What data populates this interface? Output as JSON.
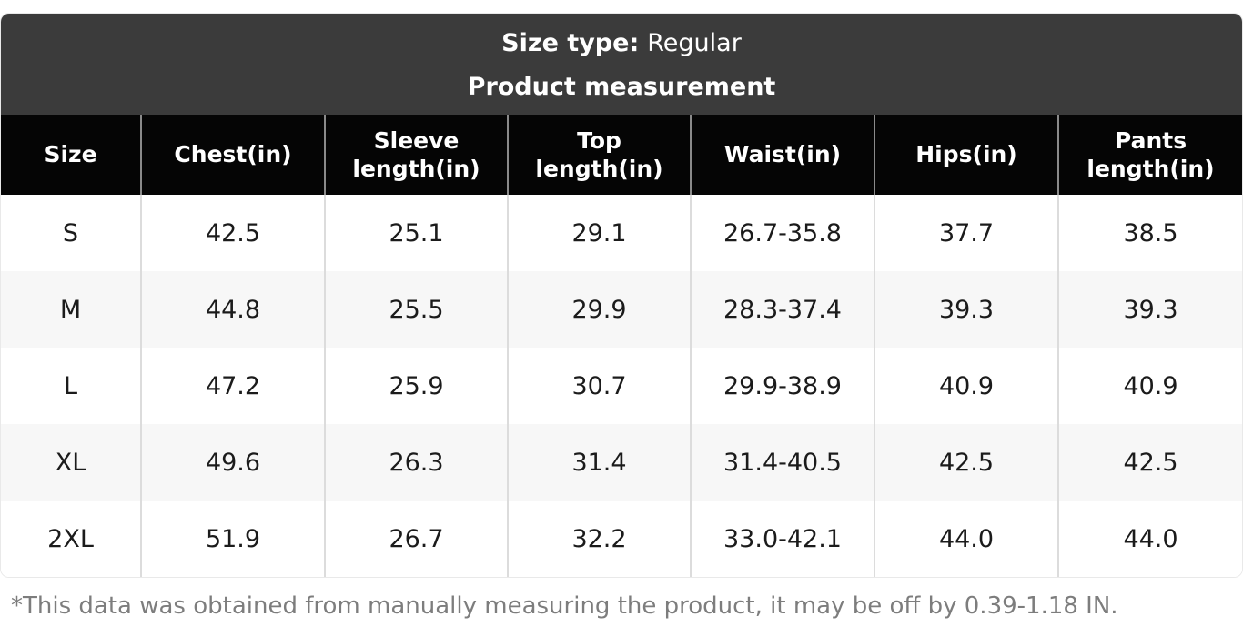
{
  "banner": {
    "size_type_label": "Size type:",
    "size_type_value": "Regular",
    "subtitle": "Product measurement"
  },
  "table": {
    "columns": [
      "Size",
      "Chest(in)",
      "Sleeve length(in)",
      "Top length(in)",
      "Waist(in)",
      "Hips(in)",
      "Pants length(in)"
    ],
    "rows": [
      [
        "S",
        "42.5",
        "25.1",
        "29.1",
        "26.7-35.8",
        "37.7",
        "38.5"
      ],
      [
        "M",
        "44.8",
        "25.5",
        "29.9",
        "28.3-37.4",
        "39.3",
        "39.3"
      ],
      [
        "L",
        "47.2",
        "25.9",
        "30.7",
        "29.9-38.9",
        "40.9",
        "40.9"
      ],
      [
        "XL",
        "49.6",
        "26.3",
        "31.4",
        "31.4-40.5",
        "42.5",
        "42.5"
      ],
      [
        "2XL",
        "51.9",
        "26.7",
        "32.2",
        "33.0-42.1",
        "44.0",
        "44.0"
      ]
    ]
  },
  "footnote": "*This data was obtained from manually measuring the product, it may be off by 0.39-1.18 IN.",
  "colors": {
    "banner_background": "#3b3b3b",
    "header_background": "#050505",
    "header_text": "#ffffff",
    "row_alt_background": "#f7f7f7",
    "body_text": "#1b1b1b",
    "footnote_text": "#7d7d7d",
    "divider_body": "#dcdcdc",
    "divider_header": "#8a8a8a"
  }
}
